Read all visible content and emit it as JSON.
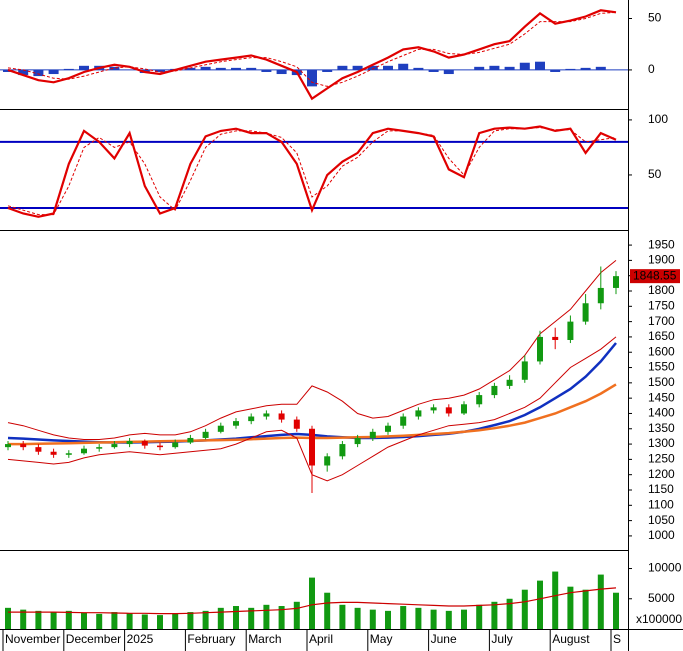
{
  "chart_data": [
    {
      "type": "macd",
      "ylim": [
        -38,
        68
      ],
      "yticks": [
        0,
        50
      ],
      "series": [
        {
          "color": "#e00000",
          "values": [
            0,
            -5,
            -10,
            -12,
            -8,
            -2,
            2,
            5,
            3,
            -2,
            -4,
            0,
            4,
            8,
            10,
            12,
            14,
            10,
            4,
            -2,
            -28,
            -18,
            -8,
            -2,
            5,
            12,
            20,
            22,
            18,
            12,
            15,
            20,
            25,
            28,
            42,
            55,
            45,
            48,
            52,
            58,
            56
          ]
        },
        {
          "color": "#e00000",
          "dashed": true,
          "values": [
            2,
            0,
            -4,
            -8,
            -9,
            -6,
            -2,
            2,
            3,
            1,
            -2,
            -1,
            2,
            5,
            8,
            10,
            12,
            12,
            8,
            3,
            -12,
            -16,
            -12,
            -6,
            1,
            8,
            14,
            20,
            20,
            16,
            15,
            17,
            21,
            25,
            35,
            47,
            47,
            47,
            50,
            55,
            56
          ]
        }
      ],
      "histogram": {
        "color": "#1f3fbf",
        "values": [
          -2,
          -5,
          -6,
          -4,
          1,
          4,
          4,
          3,
          0,
          -3,
          -2,
          1,
          2,
          3,
          2,
          2,
          2,
          -2,
          -4,
          -5,
          -16,
          -2,
          4,
          4,
          4,
          4,
          6,
          2,
          -2,
          -4,
          0,
          3,
          4,
          3,
          7,
          8,
          -2,
          1,
          2,
          3,
          0
        ]
      }
    },
    {
      "type": "stochastic",
      "ylim": [
        0,
        109
      ],
      "yticks": [
        50,
        100
      ],
      "levels": [
        20,
        80
      ],
      "level_color": "#0000c0",
      "series": [
        {
          "color": "#e00000",
          "values": [
            20,
            15,
            12,
            15,
            60,
            90,
            80,
            65,
            88,
            40,
            15,
            20,
            60,
            85,
            90,
            92,
            88,
            88,
            80,
            60,
            18,
            50,
            62,
            70,
            88,
            92,
            90,
            88,
            85,
            55,
            48,
            88,
            92,
            93,
            92,
            94,
            90,
            92,
            70,
            88,
            82
          ]
        },
        {
          "color": "#e00000",
          "dashed": true,
          "values": [
            22,
            18,
            14,
            14,
            40,
            75,
            84,
            75,
            80,
            60,
            30,
            18,
            45,
            75,
            87,
            90,
            90,
            88,
            84,
            70,
            30,
            40,
            58,
            66,
            80,
            90,
            90,
            88,
            86,
            65,
            50,
            75,
            90,
            92,
            92,
            93,
            91,
            91,
            80,
            82,
            84
          ]
        }
      ]
    },
    {
      "type": "candlestick",
      "ylim": [
        954,
        1996
      ],
      "yticks": [
        1000,
        1050,
        1100,
        1150,
        1200,
        1250,
        1300,
        1350,
        1400,
        1450,
        1500,
        1550,
        1600,
        1650,
        1700,
        1750,
        1800,
        1850,
        1900,
        1950
      ],
      "up_color": "#119911",
      "down_color": "#e00000",
      "last_label_color": "#cc0000",
      "open": [
        1290,
        1300,
        1290,
        1275,
        1265,
        1270,
        1285,
        1290,
        1300,
        1310,
        1295,
        1290,
        1305,
        1320,
        1340,
        1360,
        1375,
        1390,
        1400,
        1380,
        1350,
        1230,
        1260,
        1300,
        1320,
        1340,
        1360,
        1390,
        1410,
        1420,
        1400,
        1430,
        1460,
        1490,
        1510,
        1570,
        1650,
        1640,
        1700,
        1760,
        1810
      ],
      "high": [
        1310,
        1310,
        1300,
        1285,
        1280,
        1295,
        1300,
        1310,
        1320,
        1315,
        1305,
        1315,
        1330,
        1350,
        1370,
        1385,
        1400,
        1410,
        1410,
        1390,
        1360,
        1270,
        1310,
        1330,
        1350,
        1370,
        1400,
        1420,
        1430,
        1430,
        1440,
        1470,
        1500,
        1525,
        1590,
        1670,
        1680,
        1720,
        1790,
        1880,
        1865
      ],
      "low": [
        1280,
        1280,
        1265,
        1255,
        1255,
        1265,
        1275,
        1285,
        1290,
        1285,
        1280,
        1285,
        1300,
        1315,
        1335,
        1350,
        1365,
        1380,
        1370,
        1340,
        1140,
        1210,
        1250,
        1290,
        1310,
        1330,
        1350,
        1380,
        1400,
        1390,
        1395,
        1420,
        1450,
        1480,
        1500,
        1560,
        1610,
        1630,
        1690,
        1740,
        1790
      ],
      "close": [
        1300,
        1290,
        1275,
        1265,
        1270,
        1285,
        1290,
        1300,
        1310,
        1295,
        1290,
        1305,
        1320,
        1340,
        1360,
        1375,
        1390,
        1400,
        1380,
        1350,
        1230,
        1260,
        1300,
        1320,
        1340,
        1360,
        1390,
        1410,
        1420,
        1400,
        1430,
        1460,
        1490,
        1510,
        1570,
        1650,
        1640,
        1700,
        1760,
        1810,
        1848.55
      ],
      "lines": [
        {
          "color": "#1030c0",
          "width": 2.5,
          "values": [
            1320,
            1318,
            1315,
            1312,
            1310,
            1308,
            1306,
            1305,
            1305,
            1306,
            1307,
            1308,
            1310,
            1312,
            1315,
            1318,
            1322,
            1326,
            1330,
            1333,
            1330,
            1325,
            1322,
            1320,
            1320,
            1321,
            1323,
            1326,
            1330,
            1334,
            1340,
            1350,
            1362,
            1375,
            1395,
            1420,
            1450,
            1480,
            1520,
            1570,
            1630
          ]
        },
        {
          "color": "#f07020",
          "width": 2.5,
          "values": [
            1300,
            1300,
            1301,
            1302,
            1303,
            1304,
            1305,
            1306,
            1307,
            1308,
            1309,
            1310,
            1311,
            1312,
            1313,
            1314,
            1316,
            1318,
            1320,
            1321,
            1320,
            1320,
            1321,
            1322,
            1323,
            1325,
            1327,
            1330,
            1333,
            1336,
            1340,
            1345,
            1352,
            1360,
            1370,
            1385,
            1400,
            1420,
            1440,
            1465,
            1495
          ]
        },
        {
          "color": "#cc0000",
          "width": 1,
          "values": [
            1370,
            1360,
            1345,
            1330,
            1320,
            1315,
            1315,
            1320,
            1330,
            1335,
            1330,
            1330,
            1340,
            1360,
            1385,
            1405,
            1415,
            1425,
            1430,
            1430,
            1490,
            1470,
            1440,
            1400,
            1385,
            1390,
            1410,
            1430,
            1445,
            1450,
            1460,
            1480,
            1510,
            1540,
            1590,
            1660,
            1700,
            1740,
            1800,
            1860,
            1900
          ]
        },
        {
          "color": "#cc0000",
          "width": 1,
          "values": [
            1250,
            1245,
            1240,
            1235,
            1240,
            1255,
            1265,
            1270,
            1275,
            1270,
            1265,
            1270,
            1275,
            1280,
            1285,
            1300,
            1320,
            1340,
            1345,
            1320,
            1200,
            1180,
            1200,
            1230,
            1260,
            1290,
            1310,
            1330,
            1345,
            1360,
            1365,
            1370,
            1380,
            1400,
            1420,
            1450,
            1500,
            1550,
            1580,
            1610,
            1650
          ]
        }
      ]
    },
    {
      "type": "volume",
      "ylim": [
        0,
        12900
      ],
      "yticks": [
        5000,
        10000
      ],
      "unit_label": "x100000",
      "color": "#119911",
      "values": [
        3500,
        3200,
        3000,
        2800,
        3000,
        2700,
        2500,
        2800,
        2600,
        2400,
        2300,
        2500,
        2800,
        3000,
        3500,
        3800,
        3500,
        4000,
        3800,
        4500,
        8500,
        6000,
        4000,
        3500,
        3200,
        3000,
        3800,
        3500,
        3200,
        3000,
        3200,
        4000,
        4500,
        5000,
        6500,
        8000,
        9500,
        7000,
        6500,
        9000,
        6000
      ],
      "ma": {
        "color": "#cc0000",
        "values": [
          2800,
          2800,
          2800,
          2800,
          2750,
          2700,
          2700,
          2650,
          2600,
          2600,
          2550,
          2550,
          2600,
          2700,
          2800,
          2900,
          3000,
          3100,
          3200,
          3400,
          4000,
          4300,
          4400,
          4400,
          4300,
          4200,
          4100,
          4000,
          3900,
          3800,
          3800,
          3900,
          4000,
          4200,
          4500,
          5000,
          5500,
          6000,
          6300,
          6600,
          6800
        ]
      },
      "categories": [
        "November",
        null,
        null,
        null,
        "December",
        null,
        null,
        null,
        "2025",
        null,
        null,
        null,
        "February",
        null,
        null,
        null,
        "March",
        null,
        null,
        null,
        "April",
        null,
        null,
        null,
        "May",
        null,
        null,
        null,
        "June",
        null,
        null,
        null,
        "July",
        null,
        null,
        null,
        "August",
        null,
        null,
        null,
        "S"
      ]
    }
  ]
}
